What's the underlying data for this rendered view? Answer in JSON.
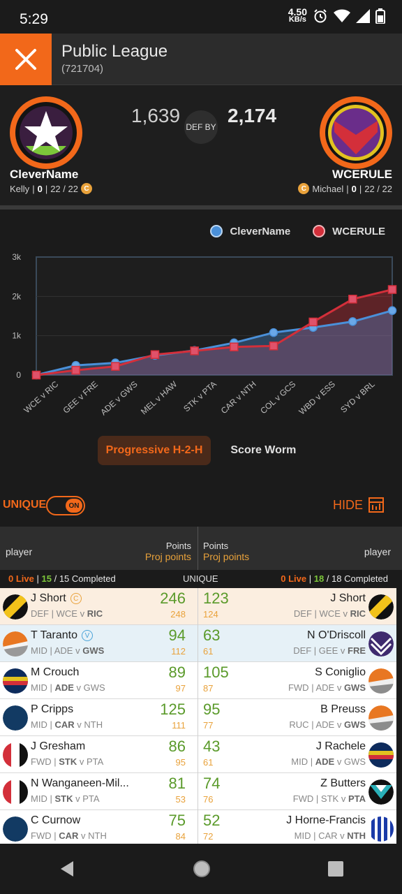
{
  "status_bar": {
    "time": "5:29",
    "speed_value": "4.50",
    "speed_unit": "KB/s"
  },
  "header": {
    "title": "Public League",
    "league_id": "(721704)"
  },
  "matchup": {
    "left": {
      "team": "CleverName",
      "coach": "Kelly",
      "rank": "0",
      "played": "22 / 22",
      "badge": "C",
      "score": "1,639"
    },
    "right": {
      "team": "WCERULE",
      "coach": "Michael",
      "rank": "0",
      "played": "22 / 22",
      "badge": "C",
      "score": "2,174"
    },
    "result_label": "DEF BY"
  },
  "chart_data": {
    "type": "line",
    "categories": [
      "WCE v RIC",
      "GEE v FRE",
      "ADE v GWS",
      "MEL v HAW",
      "STK v PTA",
      "CAR v NTH",
      "COL v GCS",
      "WBD v ESS",
      "SYD v BRL"
    ],
    "x": [
      0,
      1,
      2,
      3,
      4,
      5,
      6,
      7,
      8,
      9
    ],
    "series": [
      {
        "name": "CleverName",
        "color": "#4a90d9",
        "values": [
          0,
          246,
          310,
          500,
          625,
          820,
          1080,
          1210,
          1360,
          1639
        ]
      },
      {
        "name": "WCERULE",
        "color": "#d32f3a",
        "values": [
          0,
          123,
          220,
          520,
          615,
          715,
          740,
          1350,
          1930,
          2174
        ]
      }
    ],
    "yticks": [
      "0",
      "1k",
      "2k",
      "3k"
    ],
    "ylim": [
      0,
      3000
    ]
  },
  "chart_toggle": {
    "active": "Progressive H-2-H",
    "inactive": "Score Worm"
  },
  "unique": {
    "label": "UNIQUE",
    "switch": "ON",
    "hide": "HIDE"
  },
  "table_head": {
    "player": "player",
    "points": "Points",
    "proj": "Proj points"
  },
  "status": {
    "left_live": "0 Live",
    "left_done": "15",
    "left_total": "/ 15 Completed",
    "center": "UNIQUE",
    "right_live": "0 Live",
    "right_done": "18",
    "right_total": "/ 18 Completed",
    "sep": "|"
  },
  "rows": [
    {
      "l_name": "J Short",
      "l_pos": "DEF",
      "l_home": "WCE",
      "l_away": "RIC",
      "l_bold": "away",
      "l_pts": "246",
      "l_proj": "248",
      "l_mark": "C",
      "r_name": "J Short",
      "r_pos": "DEF",
      "r_home": "WCE",
      "r_away": "RIC",
      "r_bold": "away",
      "r_pts": "123",
      "r_proj": "124"
    },
    {
      "l_name": "T Taranto",
      "l_pos": "MID",
      "l_home": "ADE",
      "l_away": "GWS",
      "l_bold": "away",
      "l_pts": "94",
      "l_proj": "112",
      "l_mark": "V",
      "r_name": "N O'Driscoll",
      "r_pos": "DEF",
      "r_home": "GEE",
      "r_away": "FRE",
      "r_bold": "away",
      "r_pts": "63",
      "r_proj": "61"
    },
    {
      "l_name": "M Crouch",
      "l_pos": "MID",
      "l_home": "ADE",
      "l_away": "GWS",
      "l_bold": "home",
      "l_pts": "89",
      "l_proj": "97",
      "r_name": "S Coniglio",
      "r_pos": "FWD",
      "r_home": "ADE",
      "r_away": "GWS",
      "r_bold": "away",
      "r_pts": "105",
      "r_proj": "87"
    },
    {
      "l_name": "P Cripps",
      "l_pos": "MID",
      "l_home": "CAR",
      "l_away": "NTH",
      "l_bold": "home",
      "l_pts": "125",
      "l_proj": "111",
      "r_name": "B Preuss",
      "r_pos": "RUC",
      "r_home": "ADE",
      "r_away": "GWS",
      "r_bold": "away",
      "r_pts": "95",
      "r_proj": "77"
    },
    {
      "l_name": "J Gresham",
      "l_pos": "FWD",
      "l_home": "STK",
      "l_away": "PTA",
      "l_bold": "home",
      "l_pts": "86",
      "l_proj": "95",
      "r_name": "J Rachele",
      "r_pos": "MID",
      "r_home": "ADE",
      "r_away": "GWS",
      "r_bold": "home",
      "r_pts": "43",
      "r_proj": "61"
    },
    {
      "l_name": "N Wanganeen-Mil...",
      "l_pos": "MID",
      "l_home": "STK",
      "l_away": "PTA",
      "l_bold": "home",
      "l_pts": "81",
      "l_proj": "53",
      "r_name": "Z Butters",
      "r_pos": "FWD",
      "r_home": "STK",
      "r_away": "PTA",
      "r_bold": "away",
      "r_pts": "74",
      "r_proj": "76"
    },
    {
      "l_name": "C Curnow",
      "l_pos": "FWD",
      "l_home": "CAR",
      "l_away": "NTH",
      "l_bold": "home",
      "l_pts": "75",
      "l_proj": "84",
      "r_name": "J Horne-Francis",
      "r_pos": "MID",
      "r_home": "CAR",
      "r_away": "NTH",
      "r_bold": "away",
      "r_pts": "52",
      "r_proj": "72"
    }
  ],
  "icons": {
    "close": "close-icon",
    "back": "back-nav-icon",
    "home": "home-nav-icon",
    "recent": "recents-nav-icon",
    "hide": "table-icon"
  }
}
